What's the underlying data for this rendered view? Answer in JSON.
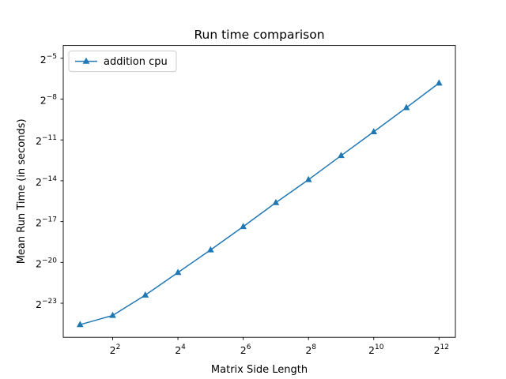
{
  "chart_data": {
    "type": "line",
    "title": "Run time comparison",
    "xlabel": "Matrix Side Length",
    "ylabel": "Mean Run Time (in seconds)",
    "x_scale": "log2",
    "y_scale": "log2",
    "x_ticks": [
      {
        "base": "2",
        "exp": "2",
        "value": 4
      },
      {
        "base": "2",
        "exp": "4",
        "value": 16
      },
      {
        "base": "2",
        "exp": "6",
        "value": 64
      },
      {
        "base": "2",
        "exp": "8",
        "value": 256
      },
      {
        "base": "2",
        "exp": "10",
        "value": 1024
      },
      {
        "base": "2",
        "exp": "12",
        "value": 4096
      }
    ],
    "y_ticks": [
      {
        "base": "2",
        "exp": "−23",
        "value": 1.1920928955078125e-07
      },
      {
        "base": "2",
        "exp": "−20",
        "value": 9.5367431640625e-07
      },
      {
        "base": "2",
        "exp": "−17",
        "value": 7.62939453125e-06
      },
      {
        "base": "2",
        "exp": "−14",
        "value": 6.103515625e-05
      },
      {
        "base": "2",
        "exp": "−11",
        "value": 0.00048828125
      },
      {
        "base": "2",
        "exp": "−8",
        "value": 0.00390625
      },
      {
        "base": "2",
        "exp": "−5",
        "value": 0.03125
      }
    ],
    "xlim": [
      1.4,
      5800
    ],
    "ylim": [
      2.1e-08,
      0.06
    ],
    "grid": false,
    "legend_position": "upper-left",
    "series": [
      {
        "name": "addition cpu",
        "color": "#1f77b4",
        "marker": "triangle-up",
        "x": [
          2,
          4,
          8,
          16,
          32,
          64,
          128,
          256,
          512,
          1024,
          2048,
          4096
        ],
        "y": [
          4e-08,
          6.4e-08,
          1.8e-07,
          5.7e-07,
          1.8e-06,
          5.9e-06,
          2e-05,
          6.45e-05,
          0.00022,
          0.00074,
          0.00253,
          0.00883
        ]
      }
    ]
  }
}
